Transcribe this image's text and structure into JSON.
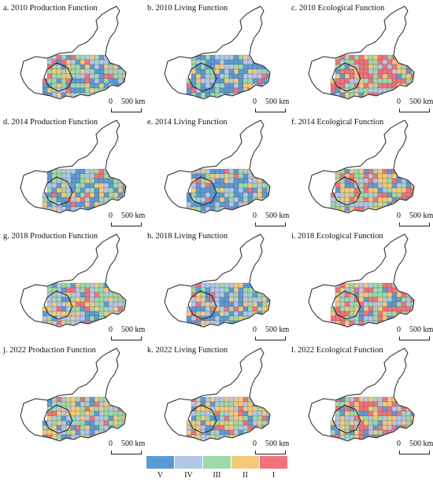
{
  "panels": [
    {
      "title": "a. 2010 Production Function",
      "weights": [
        0.3,
        0.22,
        0.26,
        0.12,
        0.1
      ],
      "seed": 1
    },
    {
      "title": "b. 2010 Living Function",
      "weights": [
        0.38,
        0.24,
        0.16,
        0.14,
        0.08
      ],
      "seed": 2
    },
    {
      "title": "c. 2010 Ecological Function",
      "weights": [
        0.08,
        0.1,
        0.22,
        0.22,
        0.38
      ],
      "seed": 3
    },
    {
      "title": "d. 2014 Production Function",
      "weights": [
        0.3,
        0.22,
        0.24,
        0.14,
        0.1
      ],
      "seed": 4
    },
    {
      "title": "e. 2014 Living Function",
      "weights": [
        0.4,
        0.22,
        0.16,
        0.14,
        0.08
      ],
      "seed": 5
    },
    {
      "title": "f. 2014 Ecological Function",
      "weights": [
        0.12,
        0.14,
        0.22,
        0.28,
        0.24
      ],
      "seed": 6
    },
    {
      "title": "g. 2018 Production Function",
      "weights": [
        0.12,
        0.26,
        0.28,
        0.22,
        0.12
      ],
      "seed": 7
    },
    {
      "title": "h. 2018 Living Function",
      "weights": [
        0.38,
        0.24,
        0.14,
        0.14,
        0.1
      ],
      "seed": 8
    },
    {
      "title": "i. 2018 Ecological Function",
      "weights": [
        0.1,
        0.14,
        0.22,
        0.24,
        0.3
      ],
      "seed": 9
    },
    {
      "title": "j. 2022 Production Function",
      "weights": [
        0.12,
        0.24,
        0.28,
        0.24,
        0.12
      ],
      "seed": 10
    },
    {
      "title": "k. 2022 Living Function",
      "weights": [
        0.16,
        0.22,
        0.22,
        0.28,
        0.12
      ],
      "seed": 11
    },
    {
      "title": "l. 2022 Ecological Function",
      "weights": [
        0.14,
        0.14,
        0.2,
        0.26,
        0.26
      ],
      "seed": 12
    }
  ],
  "scale": {
    "zero": "0",
    "distance": "500 km"
  },
  "legend": [
    {
      "label": "V",
      "color": "#5b9bd5"
    },
    {
      "label": "IV",
      "color": "#b4c7e7"
    },
    {
      "label": "III",
      "color": "#9dd9a9"
    },
    {
      "label": "II",
      "color": "#f5c97b"
    },
    {
      "label": "I",
      "color": "#f2727b"
    }
  ]
}
